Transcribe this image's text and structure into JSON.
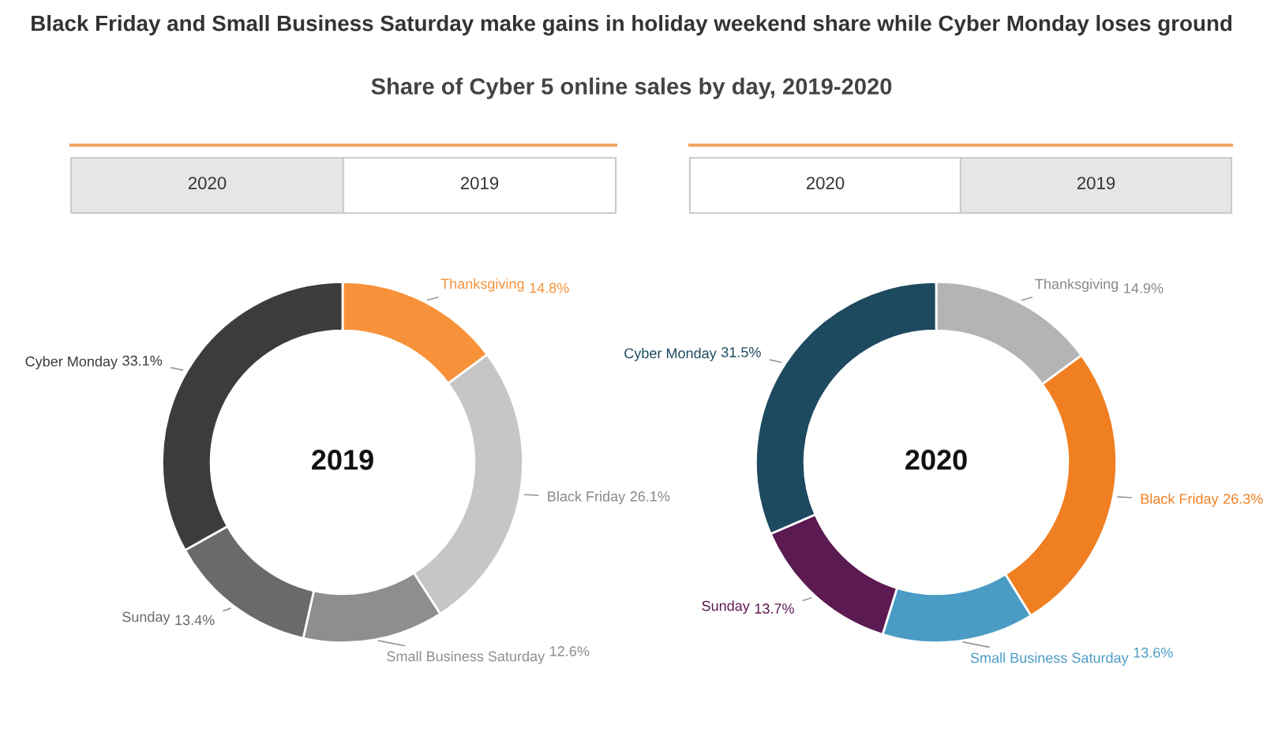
{
  "chart_data": [
    {
      "type": "donut",
      "title": "Black Friday and Small Business Saturday make gains in holiday weekend share while Cyber Monday loses ground",
      "subtitle": "Share of Cyber 5 online sales by day, 2019-2020",
      "categories": [
        "Thanksgiving",
        "Black Friday",
        "Small Business Saturday",
        "Sunday",
        "Cyber Monday"
      ],
      "values": [
        14.8,
        26.1,
        12.6,
        13.4,
        33.1
      ],
      "colors": [
        "#f7923a",
        "#c6c6c6",
        "#8e8e8e",
        "#6a6a6a",
        "#3c3c3c"
      ],
      "value_labels": [
        "14.8%",
        "26.1%",
        "12.6%",
        "13.4%",
        "33.1%"
      ],
      "annotations": [
        "2020",
        "2019",
        "2019"
      ]
    },
    {
      "type": "donut",
      "categories": [
        "Thanksgiving",
        "Black Friday",
        "Small Business Saturday",
        "Sunday",
        "Cyber Monday"
      ],
      "values": [
        14.9,
        26.3,
        13.6,
        13.7,
        31.5
      ],
      "colors": [
        "#b4b4b4",
        "#f07f22",
        "#4a9cc4",
        "#5c1a52",
        "#1e4a60"
      ],
      "value_labels": [
        "14.9%",
        "26.3%",
        "13.6%",
        "13.7%",
        "31.5%"
      ],
      "annotations": [
        "2020",
        "2019",
        "2020"
      ]
    }
  ]
}
